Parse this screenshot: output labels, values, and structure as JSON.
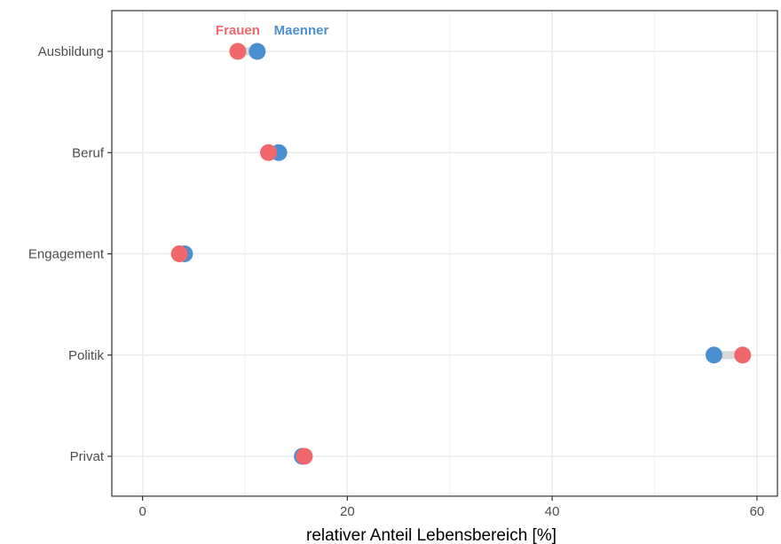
{
  "chart_data": {
    "type": "dumbbell",
    "xlabel": "relativer Anteil Lebensbereich [%]",
    "ylabel": "",
    "xlim": [
      -3,
      62
    ],
    "x_ticks": [
      0,
      20,
      40,
      60
    ],
    "categories": [
      "Ausbildung",
      "Beruf",
      "Engagement",
      "Politik",
      "Privat"
    ],
    "series": [
      {
        "name": "Frauen",
        "color": "#F0686B",
        "values": [
          9.3,
          12.3,
          3.6,
          58.6,
          15.8
        ]
      },
      {
        "name": "Maenner",
        "color": "#4A90D0",
        "values": [
          11.2,
          13.3,
          4.1,
          55.8,
          15.6
        ]
      }
    ],
    "grid": true,
    "legend_position": "top, inline above first row",
    "connector_color": "#d9d9d9"
  }
}
